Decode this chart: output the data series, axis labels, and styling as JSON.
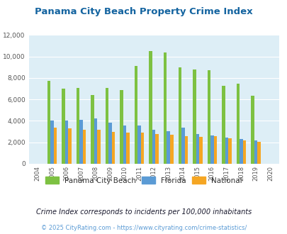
{
  "title": "Panama City Beach Property Crime Index",
  "years": [
    "2004",
    "2005",
    "2006",
    "2007",
    "2008",
    "2009",
    "2010",
    "2011",
    "2012",
    "2013",
    "2014",
    "2015",
    "2016",
    "2017",
    "2018",
    "2019",
    "2020"
  ],
  "pcb": [
    0,
    7750,
    7000,
    7100,
    6400,
    7100,
    6850,
    9100,
    10500,
    10400,
    9000,
    8800,
    8700,
    7250,
    7450,
    6350,
    0
  ],
  "florida": [
    0,
    4000,
    4000,
    4100,
    4200,
    3850,
    3550,
    3550,
    3200,
    3050,
    3400,
    2750,
    2650,
    2450,
    2300,
    2150,
    0
  ],
  "national": [
    0,
    3400,
    3300,
    3200,
    3200,
    2950,
    2900,
    2900,
    2800,
    2700,
    2600,
    2500,
    2550,
    2400,
    2200,
    2050,
    0
  ],
  "pcb_color": "#7dc142",
  "florida_color": "#5b9bd5",
  "national_color": "#f5a623",
  "plot_bg": "#ddeef6",
  "ylim": [
    0,
    12000
  ],
  "yticks": [
    0,
    2000,
    4000,
    6000,
    8000,
    10000,
    12000
  ],
  "footnote1": "Crime Index corresponds to incidents per 100,000 inhabitants",
  "footnote2": "© 2025 CityRating.com - https://www.cityrating.com/crime-statistics/",
  "title_color": "#1464a0",
  "footnote1_color": "#1a1a2e",
  "footnote2_color": "#5b9bd5"
}
